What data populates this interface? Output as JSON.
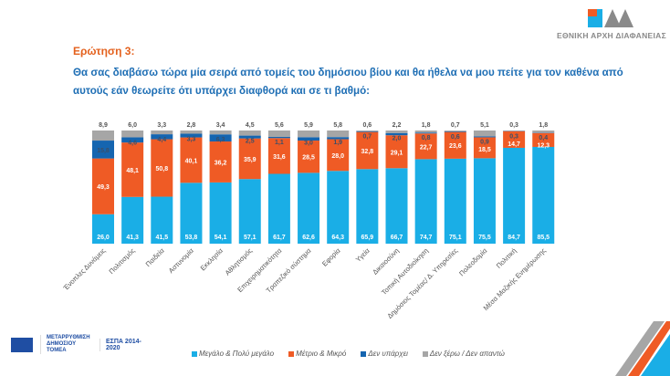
{
  "header": {
    "question_label": "Ερώτηση 3:",
    "question_text": "Θα σας διαβάσω τώρα μία σειρά από τομείς του δημόσιου βίου και θα ήθελα να μου πείτε για τον καθένα από αυτούς εάν θεωρείτε ότι υπάρχει διαφθορά και σε τι βαθμό:"
  },
  "logo": {
    "text": "ΕΘΝΙΚΗ ΑΡΧΗ ΔΙΑΦΑΝΕΙΑΣ",
    "mark": "ΕΑΔ"
  },
  "footer": {
    "reform_logo": "ΜΕΤΑΡΡΥΘΜΙΣΗ ΔΗΜΟΣΙΟΥ ΤΟΜΕΑ",
    "espa_logo": "ΕΣΠΑ 2014-2020"
  },
  "colors": {
    "large": "#1aaee6",
    "medium": "#ef5b25",
    "none": "#1565b0",
    "dk": "#a6a6a6",
    "title": "#e4611d",
    "question": "#1f6fb5"
  },
  "chart_data": {
    "type": "bar",
    "stacked": true,
    "ylim": [
      0,
      100
    ],
    "grid": false,
    "legend_placement": "bottom",
    "categories": [
      "Ένοπλες Δυνάμεις",
      "Πολιτισμός",
      "Παιδεία",
      "Αστυνομία",
      "Εκκλησία",
      "Αθλητισμός",
      "Επιχειρηματικότητα",
      "Τραπεζικό σύστημα",
      "Εφορία",
      "Υγεία",
      "Δικαιοσύνη",
      "Τοπική Αυτοδιοίκηση",
      "Δημόσιος Τομέας/ Δ. Υπηρεσίες",
      "Πολεοδομία",
      "Πολιτική",
      "Μέσα Μαζικής Ενημέρωσης"
    ],
    "series": [
      {
        "name": "Μεγάλο & Πολύ μεγάλο",
        "color": "#1aaee6",
        "values": [
          26.0,
          41.3,
          41.5,
          53.8,
          54.1,
          57.1,
          61.7,
          62.6,
          64.3,
          65.9,
          66.7,
          74.7,
          75.1,
          75.5,
          84.7,
          85.5
        ]
      },
      {
        "name": "Μέτριο & Μικρό",
        "color": "#ef5b25",
        "values": [
          49.3,
          48.1,
          50.8,
          40.1,
          36.2,
          35.9,
          31.6,
          28.5,
          28.0,
          32.8,
          29.1,
          22.7,
          23.6,
          18.5,
          14.7,
          12.3
        ]
      },
      {
        "name": "Δεν υπάρχει",
        "color": "#1565b0",
        "values": [
          15.8,
          4.6,
          4.4,
          3.3,
          6.3,
          2.5,
          1.1,
          3.0,
          1.9,
          0.7,
          2.0,
          0.8,
          0.6,
          0.9,
          0.3,
          0.4
        ]
      },
      {
        "name": "Δεν ξέρω / Δεν απαντώ",
        "color": "#a6a6a6",
        "values": [
          8.9,
          6.0,
          3.3,
          2.8,
          3.4,
          4.5,
          5.6,
          5.9,
          5.8,
          0.6,
          2.2,
          1.8,
          0.7,
          5.1,
          0.3,
          1.8
        ]
      }
    ]
  }
}
